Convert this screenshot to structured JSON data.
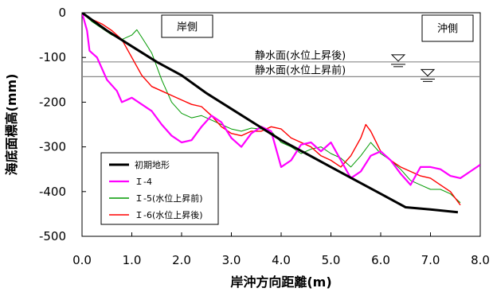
{
  "chart_data": {
    "type": "line",
    "title": "",
    "xlabel": "岸沖方向距離(m)",
    "ylabel": "海底面標高(mm)",
    "xlim": [
      0,
      8
    ],
    "ylim": [
      -500,
      0
    ],
    "x_ticks": [
      "0.0",
      "1.0",
      "2.0",
      "3.0",
      "4.0",
      "5.0",
      "6.0",
      "7.0",
      "8.0"
    ],
    "y_ticks": [
      "0",
      "-100",
      "-200",
      "-300",
      "-400",
      "-500"
    ],
    "grid": false,
    "legend_position": "bottom-left",
    "annotations": {
      "shore_side": "岸側",
      "offshore_side": "沖側",
      "swl_after": "静水面(水位上昇後)",
      "swl_before": "静水面(水位上昇前)"
    },
    "water_levels": [
      {
        "label_key": "swl_after",
        "y": -110
      },
      {
        "label_key": "swl_before",
        "y": -143
      }
    ],
    "series": [
      {
        "name": "初期地形",
        "color": "#000000",
        "width": 3,
        "x": [
          0,
          0.5,
          1.0,
          1.5,
          2.0,
          2.5,
          3.0,
          3.5,
          4.0,
          4.5,
          5.0,
          5.5,
          6.0,
          6.5,
          7.0,
          7.55
        ],
        "y": [
          0,
          -40,
          -75,
          -110,
          -140,
          -180,
          -215,
          -250,
          -285,
          -315,
          -345,
          -375,
          -405,
          -435,
          -440,
          -446
        ]
      },
      {
        "name": "Ｉ-4",
        "color": "#ff00ff",
        "width": 2.2,
        "x": [
          0,
          0.1,
          0.15,
          0.3,
          0.5,
          0.7,
          0.8,
          0.9,
          1.0,
          1.2,
          1.4,
          1.6,
          1.8,
          2.0,
          2.2,
          2.4,
          2.6,
          2.8,
          3.0,
          3.2,
          3.4,
          3.6,
          3.8,
          4.0,
          4.2,
          4.4,
          4.6,
          4.8,
          5.0,
          5.2,
          5.4,
          5.6,
          5.8,
          6.0,
          6.2,
          6.4,
          6.6,
          6.8,
          7.0,
          7.2,
          7.4,
          7.6,
          7.8,
          8.0
        ],
        "y": [
          0,
          -40,
          -85,
          -100,
          -150,
          -175,
          -200,
          -195,
          -190,
          -205,
          -220,
          -250,
          -275,
          -290,
          -285,
          -255,
          -230,
          -245,
          -280,
          -300,
          -270,
          -255,
          -265,
          -345,
          -330,
          -295,
          -290,
          -310,
          -290,
          -330,
          -370,
          -355,
          -320,
          -310,
          -330,
          -360,
          -385,
          -345,
          -345,
          -350,
          -365,
          -370,
          -355,
          -340
        ]
      },
      {
        "name": "Ｉ-5(水位上昇前)",
        "color": "#009900",
        "width": 1,
        "x": [
          0,
          0.2,
          0.4,
          0.6,
          0.8,
          1.0,
          1.1,
          1.2,
          1.4,
          1.6,
          1.8,
          2.0,
          2.2,
          2.4,
          2.6,
          2.8,
          3.0,
          3.2,
          3.4,
          3.6,
          3.8,
          4.0,
          4.2,
          4.4,
          4.6,
          4.8,
          5.0,
          5.2,
          5.4,
          5.6,
          5.8,
          6.0,
          6.2,
          6.4,
          6.6,
          6.8,
          7.0,
          7.2,
          7.4,
          7.6
        ],
        "y": [
          0,
          -20,
          -35,
          -50,
          -60,
          -50,
          -38,
          -55,
          -90,
          -150,
          -200,
          -225,
          -235,
          -230,
          -240,
          -250,
          -260,
          -265,
          -258,
          -260,
          -265,
          -290,
          -300,
          -315,
          -305,
          -300,
          -315,
          -325,
          -345,
          -320,
          -290,
          -315,
          -330,
          -350,
          -375,
          -385,
          -395,
          -395,
          -405,
          -425
        ]
      },
      {
        "name": "Ｉ-6(水位上昇後)",
        "color": "#ff0000",
        "width": 1.4,
        "x": [
          0,
          0.2,
          0.4,
          0.6,
          0.8,
          1.0,
          1.2,
          1.4,
          1.6,
          1.8,
          2.0,
          2.2,
          2.4,
          2.6,
          2.8,
          3.0,
          3.2,
          3.4,
          3.6,
          3.8,
          4.0,
          4.2,
          4.4,
          4.6,
          4.8,
          5.0,
          5.2,
          5.4,
          5.6,
          5.7,
          5.8,
          6.0,
          6.2,
          6.4,
          6.6,
          6.8,
          7.0,
          7.2,
          7.4,
          7.6
        ],
        "y": [
          0,
          -15,
          -25,
          -40,
          -60,
          -100,
          -140,
          -165,
          -175,
          -185,
          -195,
          -205,
          -210,
          -230,
          -255,
          -270,
          -275,
          -265,
          -265,
          -255,
          -260,
          -280,
          -290,
          -300,
          -320,
          -330,
          -345,
          -320,
          -280,
          -250,
          -265,
          -310,
          -330,
          -345,
          -355,
          -365,
          -370,
          -385,
          -400,
          -430
        ]
      }
    ]
  }
}
